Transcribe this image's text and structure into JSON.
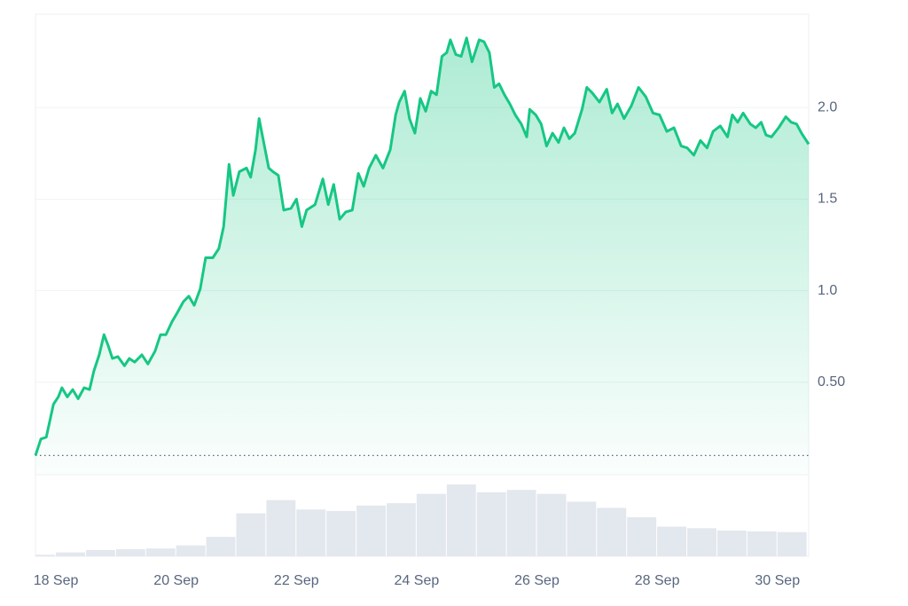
{
  "chart_data": {
    "type": "area",
    "x": [
      17.66,
      17.75,
      17.84,
      17.96,
      18.04,
      18.1,
      18.19,
      18.28,
      18.37,
      18.47,
      18.56,
      18.63,
      18.72,
      18.8,
      18.87,
      18.94,
      19.03,
      19.14,
      19.22,
      19.31,
      19.43,
      19.53,
      19.65,
      19.74,
      19.83,
      19.93,
      20.02,
      20.12,
      20.21,
      20.3,
      20.4,
      20.49,
      20.61,
      20.71,
      20.79,
      20.88,
      20.95,
      21.05,
      21.17,
      21.24,
      21.32,
      21.38,
      21.45,
      21.54,
      21.61,
      21.7,
      21.79,
      21.91,
      22.0,
      22.09,
      22.17,
      22.31,
      22.44,
      22.53,
      22.62,
      22.72,
      22.82,
      22.93,
      23.03,
      23.12,
      23.21,
      23.32,
      23.44,
      23.56,
      23.65,
      23.71,
      23.8,
      23.88,
      23.97,
      24.06,
      24.15,
      24.24,
      24.33,
      24.42,
      24.5,
      24.56,
      24.65,
      24.74,
      24.83,
      24.92,
      25.04,
      25.12,
      25.21,
      25.29,
      25.37,
      25.46,
      25.55,
      25.64,
      25.74,
      25.83,
      25.88,
      25.98,
      26.07,
      26.16,
      26.26,
      26.36,
      26.45,
      26.54,
      26.63,
      26.75,
      26.83,
      26.92,
      27.04,
      27.16,
      27.25,
      27.34,
      27.45,
      27.57,
      27.69,
      27.81,
      27.93,
      28.04,
      28.16,
      28.28,
      28.4,
      28.5,
      28.61,
      28.72,
      28.83,
      28.93,
      29.05,
      29.17,
      29.25,
      29.34,
      29.43,
      29.55,
      29.64,
      29.73,
      29.81,
      29.9,
      30.02,
      30.14,
      30.23,
      30.32,
      30.4,
      30.52
    ],
    "series": [
      {
        "color": "#16c784",
        "values": [
          0.1,
          0.19,
          0.2,
          0.38,
          0.42,
          0.47,
          0.42,
          0.46,
          0.41,
          0.47,
          0.46,
          0.56,
          0.65,
          0.76,
          0.7,
          0.63,
          0.64,
          0.59,
          0.63,
          0.61,
          0.65,
          0.6,
          0.67,
          0.76,
          0.76,
          0.83,
          0.88,
          0.94,
          0.97,
          0.92,
          1.01,
          1.18,
          1.18,
          1.23,
          1.35,
          1.69,
          1.52,
          1.65,
          1.67,
          1.62,
          1.77,
          1.94,
          1.82,
          1.67,
          1.65,
          1.63,
          1.44,
          1.45,
          1.5,
          1.35,
          1.44,
          1.47,
          1.61,
          1.47,
          1.58,
          1.39,
          1.43,
          1.44,
          1.64,
          1.57,
          1.67,
          1.74,
          1.67,
          1.77,
          1.96,
          2.03,
          2.09,
          1.94,
          1.86,
          2.05,
          1.98,
          2.09,
          2.07,
          2.28,
          2.3,
          2.37,
          2.29,
          2.28,
          2.38,
          2.25,
          2.37,
          2.36,
          2.3,
          2.11,
          2.13,
          2.07,
          2.02,
          1.96,
          1.91,
          1.84,
          1.99,
          1.96,
          1.91,
          1.79,
          1.86,
          1.81,
          1.89,
          1.83,
          1.86,
          1.99,
          2.11,
          2.08,
          2.03,
          2.1,
          1.97,
          2.02,
          1.94,
          2.01,
          2.11,
          2.06,
          1.97,
          1.96,
          1.87,
          1.89,
          1.79,
          1.78,
          1.74,
          1.82,
          1.78,
          1.87,
          1.9,
          1.84,
          1.96,
          1.92,
          1.97,
          1.91,
          1.89,
          1.92,
          1.85,
          1.84,
          1.89,
          1.95,
          1.92,
          1.91,
          1.86,
          1.8
        ]
      }
    ],
    "xlim": [
      17.66,
      30.52
    ],
    "xticks": [
      {
        "value": 18,
        "label": "18 Sep"
      },
      {
        "value": 20,
        "label": "20 Sep"
      },
      {
        "value": 22,
        "label": "22 Sep"
      },
      {
        "value": 24,
        "label": "24 Sep"
      },
      {
        "value": 26,
        "label": "26 Sep"
      },
      {
        "value": 28,
        "label": "28 Sep"
      },
      {
        "value": 30,
        "label": "30 Sep"
      }
    ],
    "ylim": [
      0,
      2.51
    ],
    "yticks": [
      {
        "value": 0.5,
        "label": "0.50"
      },
      {
        "value": 1,
        "label": "1.0"
      },
      {
        "value": 1.5,
        "label": "1.5"
      },
      {
        "value": 2,
        "label": "2.0"
      }
    ],
    "grid": true,
    "volume": {
      "color": "#e3e7ee",
      "ylim": [
        0,
        100
      ],
      "x": [
        17.75,
        18.25,
        18.75,
        19.25,
        19.75,
        20.25,
        20.75,
        21.25,
        21.75,
        22.25,
        22.75,
        23.25,
        23.75,
        24.25,
        24.75,
        25.25,
        25.75,
        26.25,
        26.75,
        27.25,
        27.75,
        28.25,
        28.75,
        29.25,
        29.75,
        30.25
      ],
      "values": [
        2,
        5,
        8,
        9,
        10,
        14,
        25,
        55,
        72,
        60,
        58,
        65,
        68,
        80,
        92,
        82,
        85,
        80,
        70,
        62,
        50,
        38,
        36,
        33,
        32,
        31
      ]
    }
  }
}
